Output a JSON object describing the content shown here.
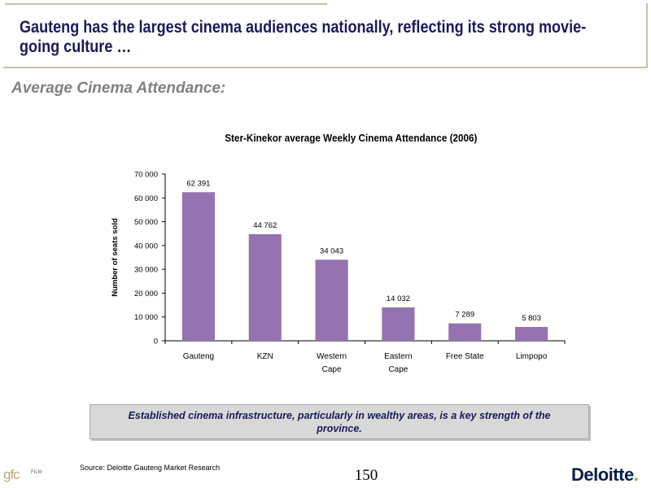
{
  "header": {
    "title_line1": "Gauteng has the largest cinema audiences nationally, reflecting its strong movie-",
    "title_line2": "going culture …"
  },
  "subtitle": "Average Cinema Attendance:",
  "chart_data": {
    "type": "bar",
    "title": "Ster-Kinekor average Weekly Cinema Attendance (2006)",
    "xlabel": "",
    "ylabel": "Number of seats sold",
    "ylim": [
      0,
      70000
    ],
    "yticks": [
      "0",
      "10 000",
      "20 000",
      "30 000",
      "40 000",
      "50 000",
      "60 000",
      "70 000"
    ],
    "categories": [
      [
        "Gauteng"
      ],
      [
        "KZN"
      ],
      [
        "Western",
        "Cape"
      ],
      [
        "Eastern",
        "Cape"
      ],
      [
        "Free State"
      ],
      [
        "Limpopo"
      ]
    ],
    "values": [
      62391,
      44762,
      34043,
      14032,
      7289,
      5803
    ],
    "data_labels": [
      "62 391",
      "44 762",
      "34 043",
      "14 032",
      "7 289",
      "5 803"
    ],
    "bar_color": "#9473b0",
    "grid": false,
    "legend": "none"
  },
  "callout": "Established cinema infrastructure, particularly in wealthy areas, is a key strength of the province.",
  "footer": {
    "source": "Source: Deloitte Gauteng Market Research",
    "page_number": "150",
    "logo_left_text": "gfc",
    "logo_left_sub": "FILM",
    "logo_right_text": "Deloitte",
    "logo_right_dot": "."
  }
}
